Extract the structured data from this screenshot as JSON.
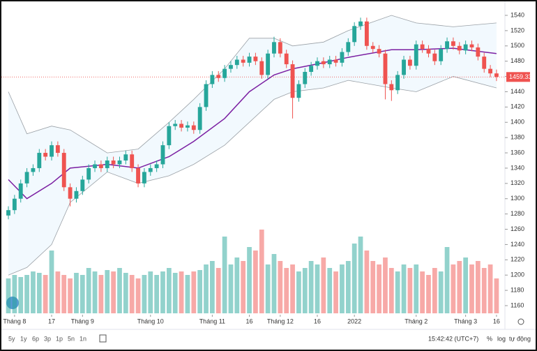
{
  "chart_data": {
    "type": "candlestick",
    "candles": {
      "open": [
        1278,
        1285,
        1300,
        1320,
        1335,
        1340,
        1360,
        1355,
        1370,
        1360,
        1315,
        1300,
        1310,
        1325,
        1340,
        1345,
        1340,
        1350,
        1345,
        1350,
        1358,
        1340,
        1320,
        1335,
        1340,
        1345,
        1370,
        1395,
        1398,
        1393,
        1396,
        1390,
        1420,
        1450,
        1462,
        1458,
        1470,
        1475,
        1482,
        1478,
        1486,
        1480,
        1462,
        1490,
        1505,
        1490,
        1476,
        1432,
        1450,
        1466,
        1474,
        1480,
        1476,
        1482,
        1478,
        1492,
        1505,
        1526,
        1532,
        1500,
        1496,
        1490,
        1450,
        1442,
        1462,
        1482,
        1474,
        1502,
        1496,
        1490,
        1480,
        1496,
        1506,
        1500,
        1494,
        1502,
        1498,
        1486,
        1470,
        1464
      ],
      "high": [
        1290,
        1305,
        1325,
        1340,
        1345,
        1365,
        1365,
        1375,
        1375,
        1365,
        1320,
        1315,
        1330,
        1345,
        1350,
        1350,
        1355,
        1355,
        1355,
        1363,
        1363,
        1345,
        1340,
        1345,
        1350,
        1375,
        1400,
        1403,
        1403,
        1401,
        1401,
        1425,
        1455,
        1467,
        1467,
        1475,
        1480,
        1487,
        1487,
        1491,
        1491,
        1485,
        1495,
        1512,
        1510,
        1495,
        1481,
        1455,
        1471,
        1479,
        1485,
        1485,
        1487,
        1487,
        1497,
        1510,
        1531,
        1537,
        1537,
        1505,
        1501,
        1495,
        1455,
        1467,
        1487,
        1487,
        1507,
        1507,
        1501,
        1495,
        1501,
        1511,
        1511,
        1505,
        1507,
        1507,
        1503,
        1491,
        1475,
        1469
      ],
      "low": [
        1273,
        1280,
        1295,
        1315,
        1330,
        1335,
        1350,
        1350,
        1355,
        1310,
        1290,
        1295,
        1305,
        1320,
        1335,
        1335,
        1335,
        1340,
        1340,
        1345,
        1335,
        1315,
        1315,
        1330,
        1335,
        1340,
        1365,
        1390,
        1388,
        1388,
        1385,
        1385,
        1415,
        1445,
        1453,
        1453,
        1465,
        1470,
        1473,
        1473,
        1475,
        1457,
        1457,
        1485,
        1485,
        1471,
        1405,
        1427,
        1445,
        1461,
        1469,
        1471,
        1471,
        1473,
        1473,
        1487,
        1500,
        1521,
        1495,
        1491,
        1485,
        1430,
        1428,
        1437,
        1457,
        1469,
        1469,
        1491,
        1485,
        1475,
        1475,
        1491,
        1495,
        1489,
        1489,
        1493,
        1481,
        1465,
        1459,
        1454
      ],
      "close": [
        1285,
        1300,
        1320,
        1335,
        1340,
        1360,
        1355,
        1370,
        1360,
        1315,
        1300,
        1310,
        1325,
        1340,
        1345,
        1340,
        1350,
        1345,
        1350,
        1358,
        1340,
        1320,
        1335,
        1340,
        1345,
        1370,
        1395,
        1398,
        1393,
        1396,
        1390,
        1420,
        1450,
        1462,
        1458,
        1470,
        1475,
        1482,
        1478,
        1486,
        1480,
        1462,
        1490,
        1505,
        1490,
        1476,
        1432,
        1450,
        1466,
        1474,
        1480,
        1476,
        1482,
        1478,
        1492,
        1505,
        1526,
        1532,
        1500,
        1496,
        1490,
        1450,
        1442,
        1462,
        1482,
        1474,
        1502,
        1496,
        1490,
        1480,
        1496,
        1506,
        1500,
        1494,
        1502,
        1498,
        1486,
        1470,
        1464,
        1459.33
      ]
    },
    "volume": [
      50,
      55,
      52,
      55,
      60,
      58,
      55,
      90,
      60,
      55,
      50,
      58,
      55,
      65,
      60,
      55,
      62,
      60,
      65,
      58,
      55,
      50,
      55,
      60,
      55,
      60,
      65,
      58,
      60,
      55,
      60,
      62,
      70,
      75,
      65,
      110,
      70,
      80,
      75,
      95,
      90,
      120,
      70,
      85,
      75,
      65,
      70,
      60,
      65,
      75,
      70,
      80,
      65,
      60,
      70,
      75,
      100,
      110,
      90,
      75,
      70,
      80,
      65,
      60,
      70,
      65,
      70,
      60,
      55,
      65,
      60,
      95,
      70,
      75,
      80,
      70,
      75,
      65,
      70,
      50
    ],
    "bands": {
      "x": [
        0,
        3,
        7,
        10,
        16,
        21,
        26,
        30,
        35,
        39,
        43,
        46,
        51,
        55,
        62,
        66,
        72,
        79
      ],
      "upper": [
        1440,
        1385,
        1395,
        1390,
        1360,
        1365,
        1400,
        1430,
        1470,
        1510,
        1510,
        1500,
        1505,
        1520,
        1540,
        1530,
        1525,
        1530
      ],
      "middle": [
        1325,
        1300,
        1320,
        1340,
        1345,
        1340,
        1355,
        1375,
        1405,
        1440,
        1462,
        1470,
        1478,
        1485,
        1495,
        1495,
        1497,
        1490
      ],
      "lower": [
        1200,
        1210,
        1240,
        1295,
        1335,
        1320,
        1330,
        1345,
        1370,
        1400,
        1430,
        1440,
        1445,
        1455,
        1445,
        1440,
        1460,
        1445
      ]
    },
    "up_color": "#26a69a",
    "down_color": "#ef5350",
    "middle_color": "#7b1fa2",
    "ylim": [
      1160,
      1540
    ],
    "yticks": [
      1160,
      1180,
      1200,
      1220,
      1240,
      1260,
      1280,
      1300,
      1320,
      1340,
      1360,
      1380,
      1400,
      1420,
      1440,
      1460,
      1480,
      1500,
      1520,
      1540
    ],
    "xticks": [
      {
        "value": 1,
        "label": "Tháng 8"
      },
      {
        "value": 7,
        "label": "17"
      },
      {
        "value": 12,
        "label": "Tháng 9"
      },
      {
        "value": 23,
        "label": "Tháng 10"
      },
      {
        "value": 33,
        "label": "Tháng 11"
      },
      {
        "value": 39,
        "label": "16"
      },
      {
        "value": 44,
        "label": "Tháng 12"
      },
      {
        "value": 50,
        "label": "16"
      },
      {
        "value": 56,
        "label": "2022"
      },
      {
        "value": 66,
        "label": "Tháng 2"
      },
      {
        "value": 74,
        "label": "Tháng 3"
      },
      {
        "value": 79,
        "label": "16"
      }
    ],
    "last_price": 1459.33,
    "toolbar": {
      "ranges": [
        "5y",
        "1y",
        "6p",
        "3p",
        "1p",
        "5n",
        "1n"
      ],
      "time": "15:42:42 (UTC+7)",
      "buttons": [
        "%",
        "log",
        "tự động"
      ]
    }
  }
}
